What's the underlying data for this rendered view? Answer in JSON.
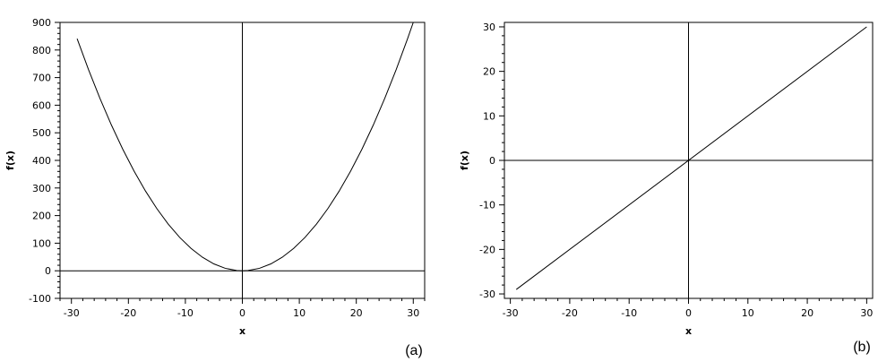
{
  "chart_data": [
    {
      "type": "line",
      "panel_label": "(a)",
      "xlabel": "x",
      "ylabel": "f(x)",
      "xlim": [
        -32,
        32
      ],
      "ylim": [
        -100,
        900
      ],
      "xticks": [
        -30,
        -20,
        -10,
        0,
        10,
        20,
        30
      ],
      "xtick_labels": [
        "-30",
        "-20",
        "-10",
        "0",
        "10",
        "20",
        "30"
      ],
      "yticks": [
        -100,
        0,
        100,
        200,
        300,
        400,
        500,
        600,
        700,
        800,
        900
      ],
      "ytick_labels": [
        "-100",
        "0",
        "100",
        "200",
        "300",
        "400",
        "500",
        "600",
        "700",
        "800",
        "900"
      ],
      "zero_lines": true,
      "grid": false,
      "series": [
        {
          "x": [
            -29,
            -27,
            -25,
            -23,
            -21,
            -19,
            -17,
            -15,
            -13,
            -11,
            -9,
            -7,
            -5,
            -3,
            -1,
            0,
            1,
            3,
            5,
            7,
            9,
            11,
            13,
            15,
            17,
            19,
            21,
            23,
            25,
            27,
            29,
            30
          ],
          "y": [
            841,
            729,
            625,
            529,
            441,
            361,
            289,
            225,
            169,
            121,
            81,
            49,
            25,
            9,
            1,
            0,
            1,
            9,
            25,
            49,
            81,
            121,
            169,
            225,
            289,
            361,
            441,
            529,
            625,
            729,
            841,
            900
          ]
        }
      ]
    },
    {
      "type": "line",
      "panel_label": "(b)",
      "xlabel": "x",
      "ylabel": "f(x)",
      "xlim": [
        -31,
        31
      ],
      "ylim": [
        -31,
        31
      ],
      "xticks": [
        -30,
        -20,
        -10,
        0,
        10,
        20,
        30
      ],
      "xtick_labels": [
        "-30",
        "-20",
        "-10",
        "0",
        "10",
        "20",
        "30"
      ],
      "yticks": [
        -30,
        -20,
        -10,
        0,
        10,
        20,
        30
      ],
      "ytick_labels": [
        "-30",
        "-20",
        "-10",
        "0",
        "10",
        "20",
        "30"
      ],
      "zero_lines": true,
      "grid": false,
      "series": [
        {
          "x": [
            -29,
            30
          ],
          "y": [
            -29,
            30
          ]
        }
      ]
    }
  ]
}
